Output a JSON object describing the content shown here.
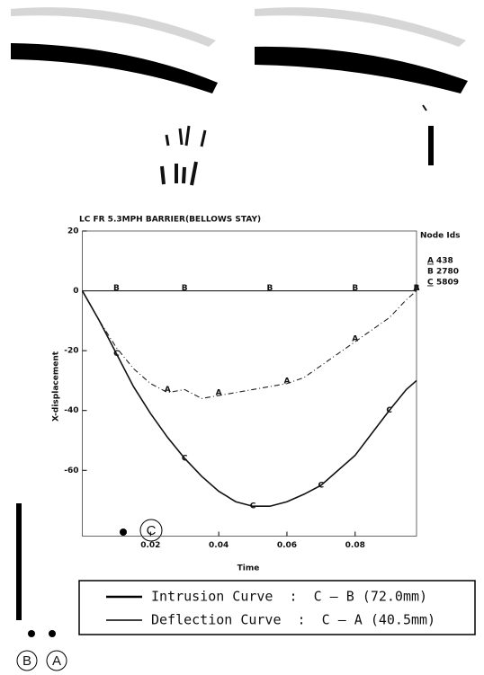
{
  "chart_data": {
    "type": "line",
    "title": "LC FR 5.3MPH BARRIER(BELLOWS STAY)",
    "x_label": "Time",
    "y_label": "X-displacement",
    "legend_title": "Node Ids",
    "x": [
      0,
      0.005,
      0.01,
      0.015,
      0.02,
      0.025,
      0.03,
      0.035,
      0.04,
      0.045,
      0.05,
      0.055,
      0.06,
      0.065,
      0.07,
      0.075,
      0.08,
      0.085,
      0.09,
      0.095,
      0.098
    ],
    "series": [
      {
        "name": "A",
        "node_id": "438",
        "color": "#222222",
        "dash": true,
        "values": [
          0,
          -10,
          -19,
          -26,
          -31,
          -34,
          -33,
          -36,
          -35,
          -34,
          -33,
          -32,
          -31,
          -29,
          -25,
          -21,
          -17,
          -13,
          -9,
          -3,
          0
        ]
      },
      {
        "name": "B",
        "node_id": "2780",
        "color": "#222222",
        "dash": false,
        "values": [
          0,
          0,
          0,
          0,
          0,
          0,
          0,
          0,
          0,
          0,
          0,
          0,
          0,
          0,
          0,
          0,
          0,
          0,
          0,
          0,
          0
        ]
      },
      {
        "name": "C",
        "node_id": "5809",
        "color": "#111111",
        "dash": false,
        "values": [
          0,
          -10,
          -21,
          -32,
          -41,
          -49,
          -56,
          -62,
          -67,
          -70.5,
          -72,
          -72,
          -70.5,
          -68,
          -65,
          -60,
          -55,
          -47.5,
          -40,
          -33,
          -30
        ]
      }
    ],
    "xlim": [
      0,
      0.098
    ],
    "ylim": [
      -82,
      20
    ],
    "xticks": [
      0.02,
      0.04,
      0.06,
      0.08
    ],
    "yticks": [
      20,
      0,
      -20,
      -40,
      -60
    ]
  },
  "legend_box": {
    "lines": [
      "Intrusion Curve  :  C – B (72.0mm)",
      "Deflection Curve  :  C – A (40.5mm)"
    ]
  },
  "callouts": [
    "B",
    "A",
    "C"
  ]
}
